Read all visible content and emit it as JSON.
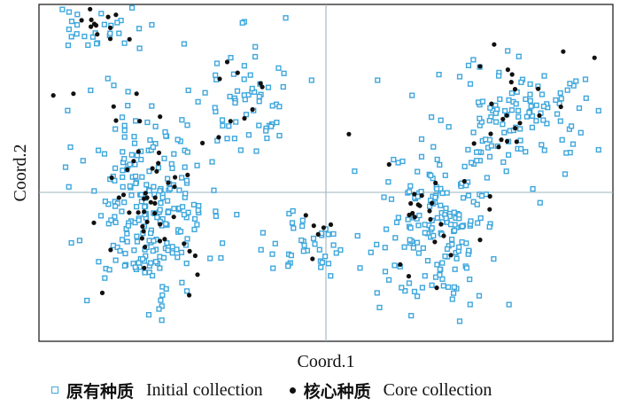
{
  "chart_data": {
    "type": "scatter",
    "xlabel": "Coord.1",
    "ylabel": "Coord.2",
    "grid": false,
    "reference_lines": "x=0 and y=0",
    "legend_position": "bottom",
    "colors": {
      "initial": "#3fa7dc",
      "core": "#111111",
      "axis": "#222222",
      "reference": "#9cb4bf"
    },
    "xlim": [
      -1,
      1
    ],
    "ylim": [
      -1,
      1
    ],
    "series": [
      {
        "name": "原有种质 Initial collection",
        "marker": "hollow-square",
        "clusters": [
          {
            "cx": -0.8,
            "cy": 0.84,
            "sx": 0.08,
            "sy": 0.08,
            "n": 28
          },
          {
            "cx": -0.62,
            "cy": -0.2,
            "sx": 0.11,
            "sy": 0.26,
            "n": 230
          },
          {
            "cx": -0.3,
            "cy": 0.42,
            "sx": 0.09,
            "sy": 0.18,
            "n": 60
          },
          {
            "cx": -0.05,
            "cy": -0.45,
            "sx": 0.1,
            "sy": 0.12,
            "n": 45
          },
          {
            "cx": 0.4,
            "cy": -0.3,
            "sx": 0.1,
            "sy": 0.24,
            "n": 170
          },
          {
            "cx": 0.66,
            "cy": 0.34,
            "sx": 0.13,
            "sy": 0.18,
            "n": 110
          }
        ],
        "extra_points": [
          [
            -0.82,
            0.49
          ],
          [
            -0.76,
            0.56
          ],
          [
            -0.71,
            0.33
          ],
          [
            -0.9,
            0.37
          ],
          [
            0.18,
            0.55
          ],
          [
            -0.14,
            0.92
          ],
          [
            -0.05,
            0.55
          ],
          [
            0.3,
            0.46
          ],
          [
            0.85,
            0.53
          ],
          [
            0.1,
            0.01
          ]
        ]
      },
      {
        "name": "核心种质 Core collection",
        "marker": "filled-dot",
        "clusters": [
          {
            "cx": -0.78,
            "cy": 0.86,
            "sx": 0.06,
            "sy": 0.06,
            "n": 12
          },
          {
            "cx": -0.6,
            "cy": -0.18,
            "sx": 0.1,
            "sy": 0.22,
            "n": 45
          },
          {
            "cx": -0.28,
            "cy": 0.46,
            "sx": 0.07,
            "sy": 0.12,
            "n": 10
          },
          {
            "cx": -0.04,
            "cy": -0.38,
            "sx": 0.06,
            "sy": 0.09,
            "n": 6
          },
          {
            "cx": 0.4,
            "cy": -0.28,
            "sx": 0.08,
            "sy": 0.2,
            "n": 22
          },
          {
            "cx": 0.64,
            "cy": 0.38,
            "sx": 0.12,
            "sy": 0.15,
            "n": 22
          }
        ],
        "extra_points": [
          [
            -0.88,
            0.47
          ],
          [
            -0.95,
            0.46
          ],
          [
            -0.66,
            0.47
          ],
          [
            -0.67,
            0.07
          ],
          [
            0.08,
            0.23
          ],
          [
            0.22,
            0.05
          ],
          [
            0.29,
            -0.25
          ]
        ]
      }
    ]
  },
  "legend": {
    "initial_cn": "原有种质",
    "initial_en": "Initial collection",
    "core_cn": "核心种质",
    "core_en": "Core collection"
  }
}
